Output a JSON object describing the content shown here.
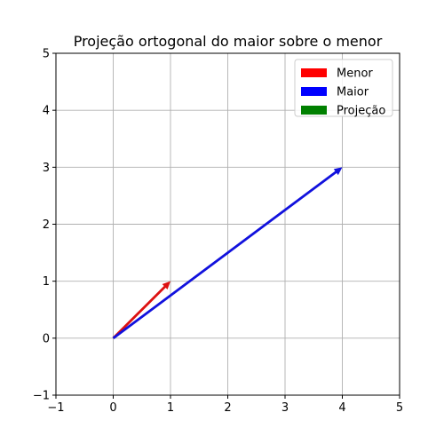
{
  "chart_data": {
    "type": "quiver",
    "title": "Projeção ortogonal do maior sobre o menor",
    "xlabel": "",
    "ylabel": "",
    "xlim": [
      -1,
      5
    ],
    "ylim": [
      -1,
      5
    ],
    "xticks": [
      -1,
      0,
      1,
      2,
      3,
      4,
      5
    ],
    "yticks": [
      -1,
      0,
      1,
      2,
      3,
      4,
      5
    ],
    "grid": true,
    "legend_position": "top-right",
    "series": [
      {
        "name": "Menor",
        "color": "#ff0000",
        "arrow_color": "#dd1111",
        "x0": 0,
        "y0": 0,
        "dx": 1,
        "dy": 1
      },
      {
        "name": "Maior",
        "color": "#0000ff",
        "arrow_color": "#1111dd",
        "x0": 0,
        "y0": 0,
        "dx": 4,
        "dy": 3
      },
      {
        "name": "Projeção",
        "color": "#008000",
        "arrow_color": "#008000",
        "x0": 0,
        "y0": 0,
        "dx": 0,
        "dy": 0
      }
    ]
  }
}
